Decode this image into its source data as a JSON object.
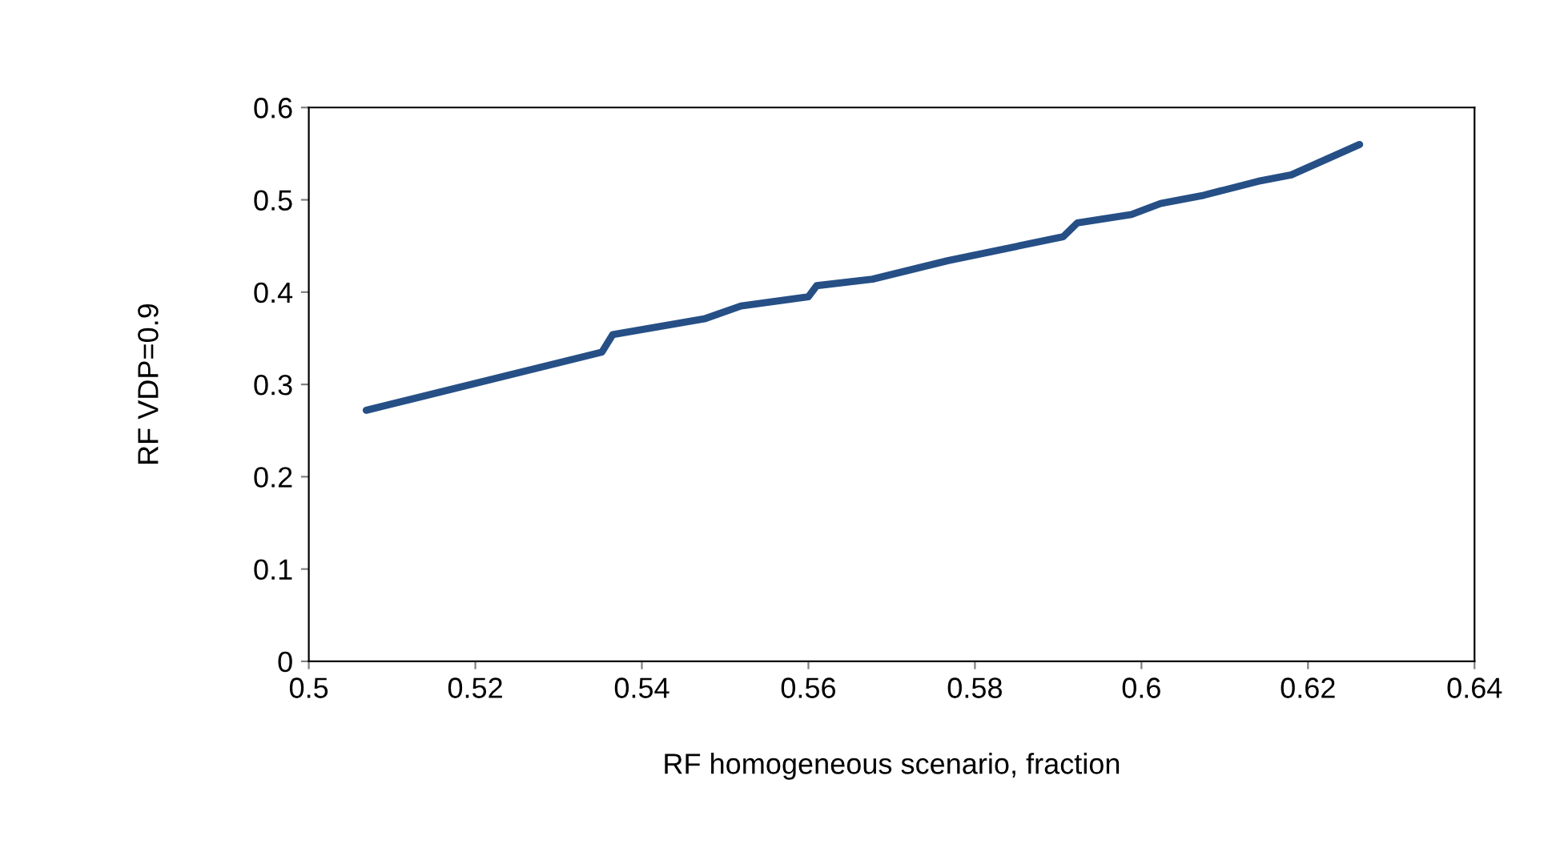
{
  "chart_data": {
    "type": "line",
    "xlabel": "RF homogeneous scenario, fraction",
    "ylabel": "RF VDP=0.9",
    "x": [
      0.5069,
      0.5352,
      0.5365,
      0.5475,
      0.5519,
      0.56,
      0.561,
      0.5677,
      0.5767,
      0.5906,
      0.5923,
      0.5988,
      0.6023,
      0.6075,
      0.614,
      0.618,
      0.6262
    ],
    "series": [
      {
        "color": "#264f86",
        "values": [
          0.272,
          0.335,
          0.354,
          0.371,
          0.385,
          0.395,
          0.407,
          0.414,
          0.434,
          0.46,
          0.475,
          0.484,
          0.496,
          0.505,
          0.52,
          0.527,
          0.56
        ]
      }
    ],
    "xlim": [
      0.5,
      0.64
    ],
    "xticks": [
      0.5,
      0.52,
      0.54,
      0.56,
      0.58,
      0.6,
      0.62,
      0.64
    ],
    "ylim": [
      0,
      0.6
    ],
    "yticks": [
      0,
      0.1,
      0.2,
      0.3,
      0.4,
      0.5,
      0.6
    ],
    "grid": false,
    "legend": false,
    "marker": "none",
    "line_style": "solid"
  }
}
